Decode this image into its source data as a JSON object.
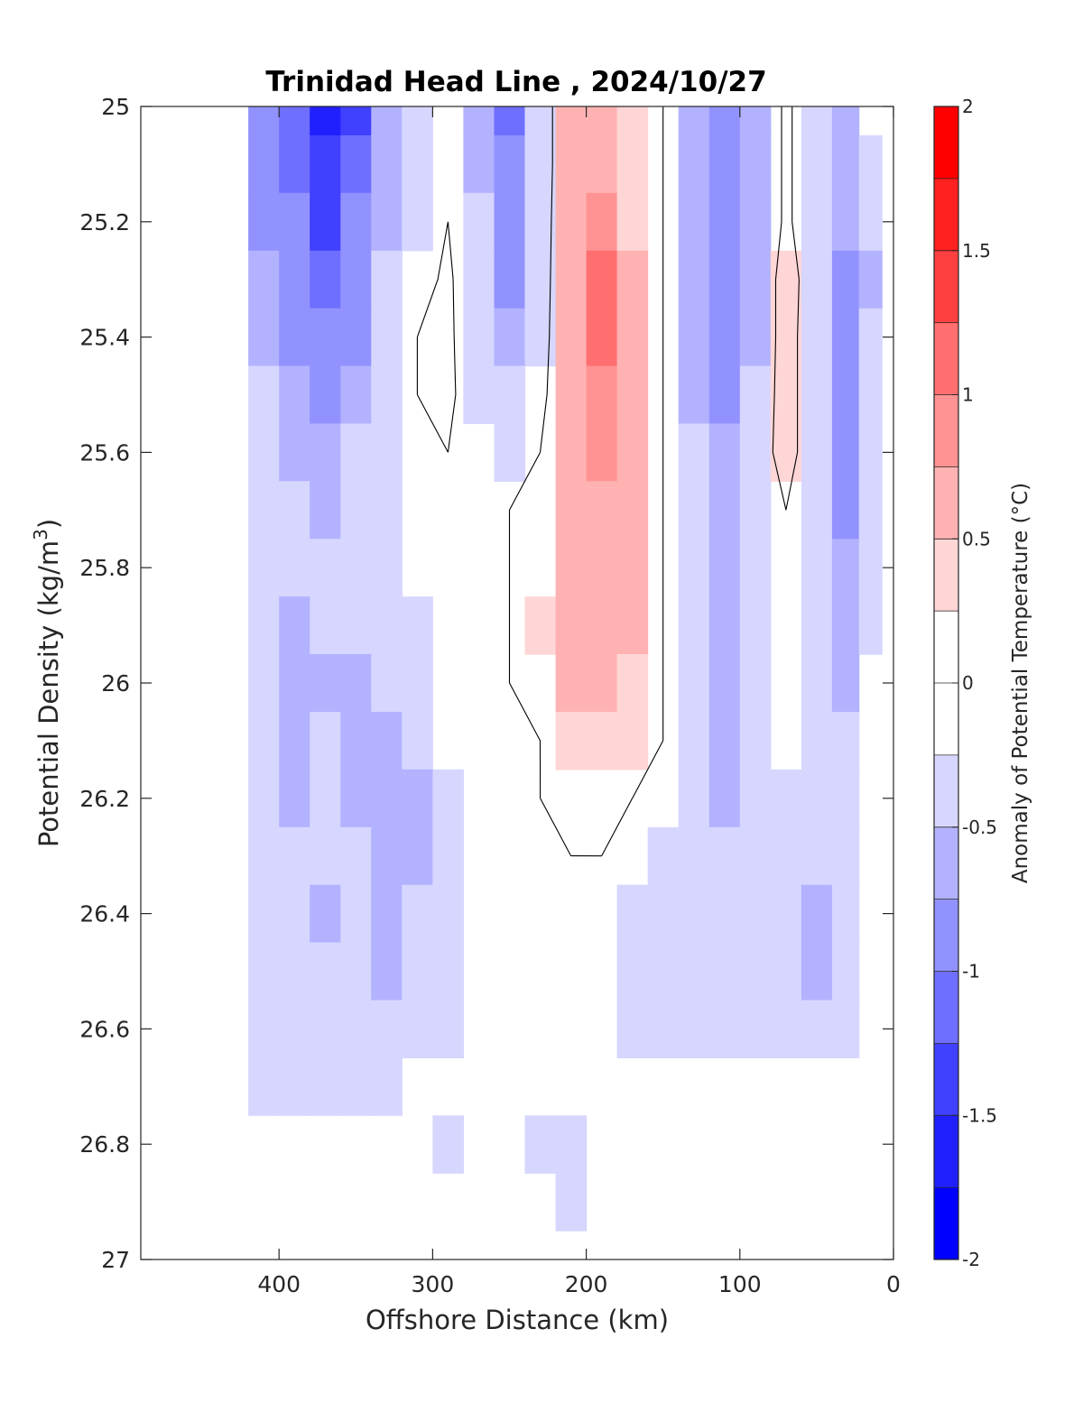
{
  "chart_data": {
    "type": "heatmap",
    "title": "Trinidad Head Line , 2024/10/27",
    "xlabel": "Offshore Distance (km)",
    "ylabel": "Potential Density (kg/m",
    "ylabel_superscript": "3",
    "ylabel_suffix": ")",
    "xlim": [
      490,
      0
    ],
    "ylim": [
      25,
      27
    ],
    "x_reversed": true,
    "y_reversed": true,
    "x_ticks": [
      400,
      300,
      200,
      100,
      0
    ],
    "x_tick_labels": [
      "400",
      "300",
      "200",
      "100",
      "0"
    ],
    "y_ticks": [
      25,
      25.2,
      25.4,
      25.6,
      25.8,
      26,
      26.2,
      26.4,
      26.6,
      26.8,
      27
    ],
    "y_tick_labels": [
      "25",
      "25.2",
      "25.4",
      "25.6",
      "25.8",
      "26",
      "26.2",
      "26.4",
      "26.6",
      "26.8",
      "27"
    ],
    "grid": false,
    "colorbar": {
      "label": "Anomaly of Potential Temperature (°C)",
      "range": [
        -2,
        2
      ],
      "step": 0.25,
      "ticks": [
        -2,
        -1.5,
        -1,
        -0.5,
        0,
        0.5,
        1,
        1.5,
        2
      ],
      "tick_labels": [
        "-2",
        "-1.5",
        "-1",
        "-0.5",
        "0",
        "0.5",
        "1",
        "1.5",
        "2"
      ],
      "colors": [
        "#0000ff",
        "#2020ff",
        "#4040ff",
        "#6f6fff",
        "#9292ff",
        "#b2b2ff",
        "#d6d6ff",
        "#ffffff",
        "#ffffff",
        "#ffd6d6",
        "#ffb2b2",
        "#ff9292",
        "#ff6f6f",
        "#ff4040",
        "#ff2020",
        "#ff0000"
      ]
    },
    "x": [
      410,
      390,
      370,
      350,
      330,
      310,
      290,
      270,
      250,
      230,
      210,
      190,
      170,
      150,
      130,
      110,
      90,
      70,
      50,
      30,
      15
    ],
    "y": [
      25,
      25.1,
      25.2,
      25.3,
      25.4,
      25.5,
      25.6,
      25.7,
      25.8,
      25.9,
      26,
      26.1,
      26.2,
      26.3,
      26.4,
      26.5,
      26.6,
      26.7,
      26.8,
      26.9
    ],
    "z": [
      [
        -0.9,
        -1.2,
        -1.7,
        -1.3,
        -0.6,
        -0.4,
        0.0,
        -0.6,
        -1.1,
        -0.4,
        0.6,
        0.5,
        0.35,
        0.0,
        -0.6,
        -0.8,
        -0.6,
        0.1,
        -0.4,
        -0.6,
        -0.2
      ],
      [
        -0.9,
        -1.1,
        -1.5,
        -1.2,
        -0.6,
        -0.4,
        0.0,
        -0.6,
        -1.0,
        -0.4,
        0.6,
        0.6,
        0.35,
        0.0,
        -0.6,
        -0.8,
        -0.6,
        0.1,
        -0.4,
        -0.6,
        -0.3
      ],
      [
        -0.8,
        -1.0,
        -1.3,
        -1.0,
        -0.6,
        -0.35,
        0.0,
        -0.5,
        -0.9,
        -0.4,
        0.7,
        0.9,
        0.4,
        0.0,
        -0.6,
        -0.9,
        -0.6,
        0.1,
        -0.4,
        -0.7,
        -0.5
      ],
      [
        -0.7,
        -0.9,
        -1.1,
        -0.9,
        -0.5,
        -0.2,
        0.1,
        -0.5,
        -0.8,
        -0.35,
        0.7,
        1.0,
        0.5,
        0.0,
        -0.6,
        -1.0,
        -0.6,
        0.3,
        -0.4,
        -0.8,
        -0.6
      ],
      [
        -0.6,
        -0.8,
        -1.0,
        -0.8,
        -0.4,
        0.0,
        0.1,
        -0.4,
        -0.7,
        -0.3,
        0.7,
        1.0,
        0.5,
        0.0,
        -0.6,
        -1.0,
        -0.6,
        0.3,
        -0.5,
        -0.9,
        -0.5
      ],
      [
        -0.5,
        -0.7,
        -0.8,
        -0.6,
        -0.35,
        0.0,
        0.1,
        -0.3,
        -0.5,
        -0.2,
        0.7,
        0.9,
        0.5,
        0.0,
        -0.6,
        -0.9,
        -0.5,
        0.3,
        -0.5,
        -0.9,
        -0.5
      ],
      [
        -0.5,
        -0.6,
        -0.7,
        -0.5,
        -0.3,
        0.0,
        0.0,
        -0.2,
        -0.35,
        0.0,
        0.7,
        0.8,
        0.5,
        0.0,
        -0.5,
        -0.7,
        -0.4,
        0.3,
        -0.5,
        -0.9,
        -0.4
      ],
      [
        -0.45,
        -0.5,
        -0.55,
        -0.45,
        -0.3,
        -0.2,
        0.0,
        0.0,
        0.0,
        0.1,
        0.7,
        0.7,
        0.5,
        0.0,
        -0.5,
        -0.6,
        -0.4,
        0.0,
        -0.5,
        -0.8,
        -0.4
      ],
      [
        -0.4,
        -0.45,
        -0.5,
        -0.4,
        -0.3,
        -0.25,
        -0.2,
        0.0,
        0.0,
        0.2,
        0.7,
        0.7,
        0.5,
        0.0,
        -0.5,
        -0.6,
        -0.4,
        0.0,
        -0.5,
        -0.7,
        -0.4
      ],
      [
        -0.4,
        -0.6,
        -0.5,
        -0.4,
        -0.3,
        -0.3,
        -0.2,
        0.0,
        0.0,
        0.3,
        0.6,
        0.7,
        0.5,
        0.0,
        -0.5,
        -0.6,
        -0.4,
        0.0,
        -0.5,
        -0.6,
        -0.3
      ],
      [
        -0.4,
        -0.6,
        -0.6,
        -0.6,
        -0.5,
        -0.4,
        -0.2,
        0.0,
        0.0,
        0.2,
        0.5,
        0.55,
        0.45,
        0.0,
        -0.5,
        -0.6,
        -0.4,
        -0.1,
        -0.5,
        -0.6,
        -0.2
      ],
      [
        -0.4,
        -0.6,
        -0.5,
        -0.6,
        -0.6,
        -0.5,
        -0.25,
        0.0,
        0.0,
        0.0,
        0.35,
        0.4,
        0.35,
        0.0,
        -0.5,
        -0.6,
        -0.4,
        -0.2,
        -0.5,
        -0.5,
        -0.2
      ],
      [
        -0.4,
        -0.55,
        -0.5,
        -0.6,
        -0.6,
        -0.55,
        -0.3,
        0.0,
        0.0,
        0.0,
        0.1,
        0.2,
        0.0,
        -0.1,
        -0.5,
        -0.6,
        -0.45,
        -0.3,
        -0.5,
        -0.5,
        -0.2
      ],
      [
        -0.4,
        -0.5,
        -0.45,
        -0.5,
        -0.6,
        -0.55,
        -0.3,
        0.0,
        0.0,
        0.0,
        0.0,
        0.0,
        0.0,
        -0.3,
        -0.45,
        -0.5,
        -0.45,
        -0.4,
        -0.5,
        -0.45,
        -0.2
      ],
      [
        -0.4,
        -0.5,
        -0.55,
        -0.5,
        -0.6,
        -0.5,
        -0.3,
        0.0,
        0.0,
        0.0,
        0.0,
        0.0,
        -0.3,
        -0.4,
        -0.4,
        -0.45,
        -0.45,
        -0.45,
        -0.55,
        -0.4,
        -0.2
      ],
      [
        -0.4,
        -0.45,
        -0.45,
        -0.45,
        -0.55,
        -0.45,
        -0.3,
        0.0,
        0.0,
        0.0,
        0.0,
        -0.25,
        -0.35,
        -0.4,
        -0.35,
        -0.35,
        -0.4,
        -0.45,
        -0.55,
        -0.4,
        -0.2
      ],
      [
        -0.4,
        -0.4,
        -0.35,
        -0.4,
        -0.4,
        -0.35,
        -0.3,
        0.0,
        0.0,
        0.0,
        0.0,
        -0.2,
        -0.3,
        -0.3,
        -0.3,
        -0.3,
        -0.35,
        -0.35,
        -0.35,
        -0.3,
        -0.2
      ],
      [
        -0.35,
        -0.35,
        -0.35,
        -0.3,
        -0.3,
        -0.2,
        0.0,
        0.0,
        0.0,
        0.0,
        0.0,
        -0.2,
        -0.2,
        0.0,
        0.0,
        0.0,
        0.0,
        0.0,
        0.0,
        0.0,
        0.0
      ],
      [
        0.0,
        0.0,
        0.0,
        0.0,
        0.0,
        0.0,
        -0.3,
        0.0,
        0.0,
        -0.3,
        -0.3,
        0.0,
        0.0,
        0.0,
        0.0,
        0.0,
        0.0,
        0.0,
        0.0,
        0.0,
        0.0
      ],
      [
        0.0,
        0.0,
        0.0,
        0.0,
        0.0,
        0.0,
        0.0,
        0.0,
        0.0,
        0.0,
        -0.3,
        0.0,
        0.0,
        0.0,
        0.0,
        0.0,
        0.0,
        0.0,
        0.0,
        0.0,
        0.0
      ]
    ]
  }
}
